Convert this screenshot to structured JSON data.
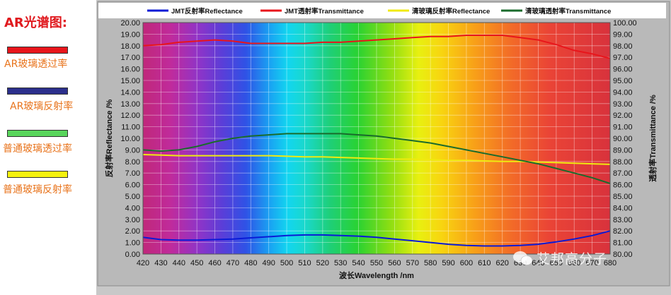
{
  "side_legend": {
    "title": "AR光谱图:",
    "items": [
      {
        "label": "AR玻璃透过率",
        "color": "#e8151b"
      },
      {
        "label": "AR玻璃反射率",
        "color": "#2b2f8c"
      },
      {
        "label": "普通玻璃透过率",
        "color": "#59d65c"
      },
      {
        "label": "普通玻璃反射率",
        "color": "#f5f20d"
      }
    ]
  },
  "watermark": "艾邦高分子",
  "chart_data": {
    "type": "line",
    "x": [
      420,
      430,
      440,
      450,
      460,
      470,
      480,
      490,
      500,
      510,
      520,
      530,
      540,
      550,
      560,
      570,
      580,
      590,
      600,
      610,
      620,
      630,
      640,
      650,
      660,
      670,
      680
    ],
    "x_tick_labels": [
      "420",
      "430",
      "440",
      "450",
      "460",
      "470",
      "480",
      "490",
      "500",
      "510",
      "520",
      "530",
      "540",
      "550",
      "560",
      "570",
      "580",
      "590",
      "600",
      "610",
      "620",
      "630",
      "640",
      "650",
      "660",
      "670",
      "680"
    ],
    "xlabel": "波长Wavelength /nm",
    "ylabel_left": "反射率Reflectance /%",
    "ylabel_right": "透射率Transmittance /%",
    "ylim_left": [
      0,
      20
    ],
    "ylim_right": [
      80,
      100
    ],
    "y_left_ticks": [
      "0.00",
      "1.00",
      "2.00",
      "3.00",
      "4.00",
      "5.00",
      "6.00",
      "7.00",
      "8.00",
      "9.00",
      "10.00",
      "11.00",
      "12.00",
      "13.00",
      "14.00",
      "15.00",
      "16.00",
      "17.00",
      "18.00",
      "19.00",
      "20.00"
    ],
    "y_right_ticks": [
      "80.00",
      "81.00",
      "82.00",
      "83.00",
      "84.00",
      "85.00",
      "86.00",
      "87.00",
      "88.00",
      "89.00",
      "90.00",
      "91.00",
      "92.00",
      "93.00",
      "94.00",
      "95.00",
      "96.00",
      "97.00",
      "98.00",
      "99.00",
      "100.00"
    ],
    "grid": true,
    "legend_position": "top",
    "series": [
      {
        "name": "JMT反射率Reflectance",
        "axis": "left",
        "color": "#0a1ad6",
        "values": [
          1.45,
          1.25,
          1.2,
          1.2,
          1.25,
          1.3,
          1.4,
          1.5,
          1.6,
          1.65,
          1.65,
          1.6,
          1.55,
          1.45,
          1.3,
          1.15,
          1.0,
          0.85,
          0.75,
          0.7,
          0.7,
          0.75,
          0.85,
          1.05,
          1.3,
          1.6,
          2.0
        ]
      },
      {
        "name": "JMT透射率Transmittance",
        "axis": "right",
        "color": "#e8151b",
        "values": [
          98.0,
          98.1,
          98.3,
          98.4,
          98.5,
          98.4,
          98.2,
          98.2,
          98.2,
          98.2,
          98.3,
          98.3,
          98.4,
          98.5,
          98.6,
          98.7,
          98.8,
          98.8,
          98.9,
          98.9,
          98.9,
          98.7,
          98.5,
          98.1,
          97.6,
          97.3,
          96.9
        ]
      },
      {
        "name": "清玻璃反射率Reflectance",
        "axis": "left",
        "color": "#f0ea10",
        "values": [
          8.6,
          8.55,
          8.5,
          8.5,
          8.5,
          8.5,
          8.5,
          8.5,
          8.45,
          8.4,
          8.4,
          8.35,
          8.3,
          8.25,
          8.2,
          8.2,
          8.15,
          8.1,
          8.1,
          8.05,
          8.0,
          8.0,
          7.95,
          7.9,
          7.85,
          7.8,
          7.75
        ]
      },
      {
        "name": "清玻璃透射率Transmittance",
        "axis": "right",
        "color": "#1a6b2c",
        "values": [
          89.0,
          88.9,
          89.0,
          89.3,
          89.7,
          90.0,
          90.2,
          90.3,
          90.4,
          90.4,
          90.4,
          90.4,
          90.3,
          90.2,
          90.0,
          89.8,
          89.6,
          89.3,
          89.0,
          88.7,
          88.4,
          88.1,
          87.8,
          87.4,
          87.0,
          86.6,
          86.1
        ]
      }
    ]
  }
}
